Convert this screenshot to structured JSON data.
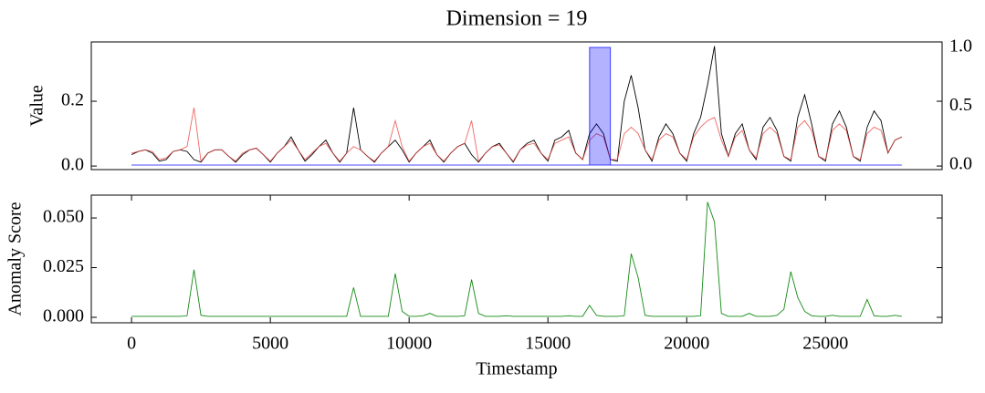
{
  "chart_data": [
    {
      "type": "line",
      "title": "Dimension = 19",
      "ylabel": "Value",
      "x": [
        0,
        250,
        500,
        750,
        1000,
        1250,
        1500,
        1750,
        2000,
        2250,
        2500,
        2750,
        3000,
        3250,
        3500,
        3750,
        4000,
        4250,
        4500,
        4750,
        5000,
        5250,
        5500,
        5750,
        6000,
        6250,
        6500,
        6750,
        7000,
        7250,
        7500,
        7750,
        8000,
        8250,
        8500,
        8750,
        9000,
        9250,
        9500,
        9750,
        10000,
        10250,
        10500,
        10750,
        11000,
        11250,
        11500,
        11750,
        12000,
        12250,
        12500,
        12750,
        13000,
        13250,
        13500,
        13750,
        14000,
        14250,
        14500,
        14750,
        15000,
        15250,
        15500,
        15750,
        16000,
        16250,
        16500,
        16750,
        17000,
        17250,
        17500,
        17750,
        18000,
        18250,
        18500,
        18750,
        19000,
        19250,
        19500,
        19750,
        20000,
        20250,
        20500,
        20750,
        21000,
        21250,
        21500,
        21750,
        22000,
        22250,
        22500,
        22750,
        23000,
        23250,
        23500,
        23750,
        24000,
        24250,
        24500,
        24750,
        25000,
        25250,
        25500,
        25750,
        26000,
        26250,
        26500,
        26750,
        27000,
        27250,
        27500,
        27750
      ],
      "xlim": [
        -1450,
        29200
      ],
      "ylim": [
        -0.011,
        0.383
      ],
      "yticks": [
        {
          "value": 0,
          "label": "0.0"
        },
        0.2
      ],
      "y2lim": [
        -0.039,
        1.047
      ],
      "y2ticks": [
        {
          "value": 0,
          "label": "0.0"
        },
        0.5,
        {
          "value": 1,
          "label": "1.0"
        }
      ],
      "series": [
        {
          "color": "#000000",
          "values": [
            0.035,
            0.045,
            0.05,
            0.04,
            0.015,
            0.02,
            0.045,
            0.05,
            0.045,
            0.02,
            0.012,
            0.04,
            0.05,
            0.05,
            0.03,
            0.012,
            0.035,
            0.05,
            0.055,
            0.035,
            0.012,
            0.04,
            0.06,
            0.09,
            0.05,
            0.015,
            0.035,
            0.06,
            0.08,
            0.04,
            0.012,
            0.04,
            0.18,
            0.05,
            0.03,
            0.012,
            0.04,
            0.06,
            0.08,
            0.05,
            0.012,
            0.04,
            0.06,
            0.08,
            0.035,
            0.012,
            0.04,
            0.06,
            0.07,
            0.035,
            0.012,
            0.04,
            0.06,
            0.07,
            0.04,
            0.012,
            0.05,
            0.07,
            0.08,
            0.04,
            0.015,
            0.08,
            0.09,
            0.11,
            0.04,
            0.02,
            0.1,
            0.13,
            0.1,
            0.02,
            0.015,
            0.2,
            0.28,
            0.18,
            0.05,
            0.015,
            0.09,
            0.13,
            0.1,
            0.04,
            0.015,
            0.1,
            0.15,
            0.25,
            0.37,
            0.1,
            0.03,
            0.1,
            0.13,
            0.05,
            0.02,
            0.12,
            0.15,
            0.11,
            0.03,
            0.015,
            0.15,
            0.22,
            0.13,
            0.03,
            0.015,
            0.13,
            0.17,
            0.12,
            0.03,
            0.015,
            0.12,
            0.17,
            0.14,
            0.04,
            0.08,
            0.09
          ]
        },
        {
          "color": "#e8413c",
          "values": [
            0.04,
            0.045,
            0.05,
            0.045,
            0.02,
            0.025,
            0.045,
            0.05,
            0.06,
            0.18,
            0.015,
            0.04,
            0.05,
            0.05,
            0.03,
            0.015,
            0.04,
            0.05,
            0.055,
            0.035,
            0.015,
            0.04,
            0.06,
            0.08,
            0.05,
            0.02,
            0.04,
            0.06,
            0.07,
            0.04,
            0.015,
            0.04,
            0.06,
            0.05,
            0.03,
            0.015,
            0.04,
            0.06,
            0.14,
            0.06,
            0.015,
            0.04,
            0.06,
            0.07,
            0.035,
            0.015,
            0.04,
            0.06,
            0.07,
            0.14,
            0.015,
            0.04,
            0.06,
            0.065,
            0.04,
            0.015,
            0.05,
            0.065,
            0.07,
            0.04,
            0.02,
            0.07,
            0.08,
            0.09,
            0.04,
            0.02,
            0.08,
            0.1,
            0.09,
            0.02,
            0.02,
            0.1,
            0.12,
            0.1,
            0.05,
            0.02,
            0.08,
            0.1,
            0.09,
            0.04,
            0.02,
            0.09,
            0.12,
            0.14,
            0.15,
            0.08,
            0.03,
            0.09,
            0.11,
            0.05,
            0.025,
            0.1,
            0.12,
            0.1,
            0.03,
            0.02,
            0.12,
            0.14,
            0.11,
            0.03,
            0.02,
            0.11,
            0.13,
            0.11,
            0.03,
            0.02,
            0.1,
            0.12,
            0.11,
            0.04,
            0.08,
            0.09
          ]
        },
        {
          "color": "#0000ff",
          "axis": "y2",
          "style": "area",
          "values": [
            0,
            0,
            0,
            0,
            0,
            0,
            0,
            0,
            0,
            0,
            0,
            0,
            0,
            0,
            0,
            0,
            0,
            0,
            0,
            0,
            0,
            0,
            0,
            0,
            0,
            0,
            0,
            0,
            0,
            0,
            0,
            0,
            0,
            0,
            0,
            0,
            0,
            0,
            0,
            0,
            0,
            0,
            0,
            0,
            0,
            0,
            0,
            0,
            0,
            0,
            0,
            0,
            0,
            0,
            0,
            0,
            0,
            0,
            0,
            0,
            0,
            0,
            0,
            0,
            0,
            0,
            1,
            1,
            1,
            0,
            0,
            0,
            0,
            0,
            0,
            0,
            0,
            0,
            0,
            0,
            0,
            0,
            0,
            0,
            0,
            0,
            0,
            0,
            0,
            0,
            0,
            0,
            0,
            0,
            0,
            0,
            0,
            0,
            0,
            0,
            0,
            0,
            0,
            0,
            0,
            0,
            0,
            0,
            0,
            0,
            0,
            0
          ]
        }
      ]
    },
    {
      "type": "line",
      "ylabel": "Anomaly Score",
      "xlabel": "Timestamp",
      "x": [
        0,
        250,
        500,
        750,
        1000,
        1250,
        1500,
        1750,
        2000,
        2250,
        2500,
        2750,
        3000,
        3250,
        3500,
        3750,
        4000,
        4250,
        4500,
        4750,
        5000,
        5250,
        5500,
        5750,
        6000,
        6250,
        6500,
        6750,
        7000,
        7250,
        7500,
        7750,
        8000,
        8250,
        8500,
        8750,
        9000,
        9250,
        9500,
        9750,
        10000,
        10250,
        10500,
        10750,
        11000,
        11250,
        11500,
        11750,
        12000,
        12250,
        12500,
        12750,
        13000,
        13250,
        13500,
        13750,
        14000,
        14250,
        14500,
        14750,
        15000,
        15250,
        15500,
        15750,
        16000,
        16250,
        16500,
        16750,
        17000,
        17250,
        17500,
        17750,
        18000,
        18250,
        18500,
        18750,
        19000,
        19250,
        19500,
        19750,
        20000,
        20250,
        20500,
        20750,
        21000,
        21250,
        21500,
        21750,
        22000,
        22250,
        22500,
        22750,
        23000,
        23250,
        23500,
        23750,
        24000,
        24250,
        24500,
        24750,
        25000,
        25250,
        25500,
        25750,
        26000,
        26250,
        26500,
        26750,
        27000,
        27250,
        27500,
        27750
      ],
      "xlim": [
        -1450,
        29200
      ],
      "xticks": [
        0,
        5000,
        10000,
        15000,
        20000,
        25000
      ],
      "ylim": [
        -0.00275,
        0.0615
      ],
      "yticks": [
        {
          "value": 0,
          "label": "0.000"
        },
        0.025,
        {
          "value": 0.05,
          "label": "0.050"
        }
      ],
      "series": [
        {
          "color": "#138a13",
          "values": [
            0.0005,
            0.0005,
            0.0005,
            0.0005,
            0.0005,
            0.0005,
            0.0005,
            0.0005,
            0.0008,
            0.024,
            0.001,
            0.0005,
            0.0005,
            0.0005,
            0.0005,
            0.0005,
            0.0005,
            0.0005,
            0.0005,
            0.0005,
            0.0005,
            0.0005,
            0.0005,
            0.0005,
            0.0005,
            0.0005,
            0.0005,
            0.0005,
            0.0005,
            0.0005,
            0.0005,
            0.0005,
            0.015,
            0.0005,
            0.0005,
            0.0005,
            0.0005,
            0.0005,
            0.022,
            0.003,
            0.0005,
            0.0005,
            0.0008,
            0.002,
            0.0005,
            0.0005,
            0.0005,
            0.0005,
            0.0008,
            0.019,
            0.002,
            0.0005,
            0.0005,
            0.0005,
            0.0008,
            0.0005,
            0.0005,
            0.0005,
            0.0005,
            0.0005,
            0.0005,
            0.0005,
            0.0005,
            0.0008,
            0.0005,
            0.0005,
            0.006,
            0.001,
            0.0005,
            0.0005,
            0.0005,
            0.0008,
            0.032,
            0.02,
            0.001,
            0.0005,
            0.0005,
            0.0005,
            0.0005,
            0.0005,
            0.0005,
            0.0005,
            0.0008,
            0.058,
            0.048,
            0.002,
            0.0005,
            0.0005,
            0.0005,
            0.002,
            0.0005,
            0.0005,
            0.0005,
            0.001,
            0.004,
            0.023,
            0.01,
            0.003,
            0.0008,
            0.0005,
            0.0005,
            0.001,
            0.0005,
            0.0005,
            0.0005,
            0.0005,
            0.009,
            0.0008,
            0.0005,
            0.0005,
            0.001,
            0.0005
          ]
        }
      ]
    }
  ]
}
